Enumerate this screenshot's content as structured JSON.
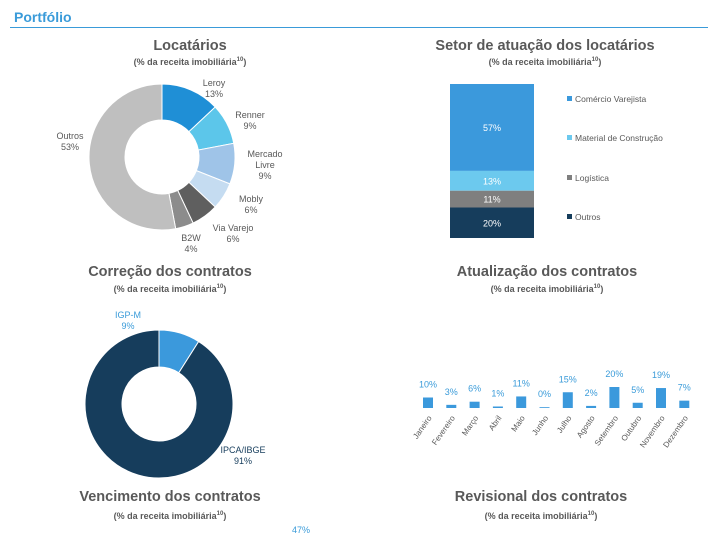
{
  "header": {
    "title": "Portfólio",
    "accent": "#3a9bd9"
  },
  "subtitle_text": "(% da receita imobiliária",
  "subtitle_sup": "10",
  "panels": {
    "locatarios": {
      "title": "Locatários"
    },
    "setor": {
      "title": "Setor de atuação dos locatários"
    },
    "correcao": {
      "title": "Correção dos contratos"
    },
    "atualizacao": {
      "title": "Atualização dos contratos"
    },
    "vencimento": {
      "title": "Vencimento dos contratos",
      "value_label": "47%"
    },
    "revisional": {
      "title": "Revisional dos contratos"
    }
  },
  "chart_data": [
    {
      "id": "locatarios",
      "type": "pie",
      "title": "Locatários",
      "subtitle": "(% da receita imobiliária10)",
      "slices": [
        {
          "label": [
            "Leroy"
          ],
          "value": 13,
          "text": "13%",
          "color": "#1f8fd6"
        },
        {
          "label": [
            "Renner"
          ],
          "value": 9,
          "text": "9%",
          "color": "#5cc6ea"
        },
        {
          "label": [
            "Mercado",
            "Livre"
          ],
          "value": 9,
          "text": "9%",
          "color": "#9fc4e8"
        },
        {
          "label": [
            "Mobly"
          ],
          "value": 6,
          "text": "6%",
          "color": "#c5dcf1"
        },
        {
          "label": [
            "Via Varejo"
          ],
          "value": 6,
          "text": "6%",
          "color": "#5f5f5f"
        },
        {
          "label": [
            "B2W"
          ],
          "value": 4,
          "text": "4%",
          "color": "#8c8c8c"
        },
        {
          "label": [
            "Outros"
          ],
          "value": 53,
          "text": "53%",
          "color": "#bfbfbf"
        }
      ]
    },
    {
      "id": "setor",
      "type": "bar",
      "stacked": true,
      "title": "Setor de atuação dos locatários",
      "subtitle": "(% da receita imobiliária10)",
      "legend_position": "right",
      "segments": [
        {
          "name": "Comércio Varejista",
          "value": 57,
          "text": "57%",
          "color": "#3b99dc"
        },
        {
          "name": "Material de Construção",
          "value": 13,
          "text": "13%",
          "color": "#6cc9ee"
        },
        {
          "name": "Logística",
          "value": 11,
          "text": "11%",
          "color": "#7f7f7f"
        },
        {
          "name": "Outros",
          "value": 20,
          "text": "20%",
          "color": "#163d5c"
        }
      ]
    },
    {
      "id": "correcao",
      "type": "pie",
      "title": "Correção dos contratos",
      "subtitle": "(% da receita imobiliária10)",
      "slices": [
        {
          "label": [
            "IGP-M"
          ],
          "value": 9,
          "text": "9%",
          "color": "#3b99dc"
        },
        {
          "label": [
            "IPCA/IBGE"
          ],
          "value": 91,
          "text": "91%",
          "color": "#163d5c"
        }
      ]
    },
    {
      "id": "atualizacao",
      "type": "bar",
      "title": "Atualização dos contratos",
      "subtitle": "(% da receita imobiliária10)",
      "categories": [
        "Janeiro",
        "Fevereiro",
        "Março",
        "Abril",
        "Maio",
        "Junho",
        "Julho",
        "Agosto",
        "Setembro",
        "Outubro",
        "Novembro",
        "Dezembro"
      ],
      "values": [
        10,
        3,
        6,
        1,
        11,
        0,
        15,
        2,
        20,
        5,
        19,
        7
      ],
      "value_labels": [
        "10%",
        "3%",
        "6%",
        "1%",
        "11%",
        "0%",
        "15%",
        "2%",
        "20%",
        "5%",
        "19%",
        "7%"
      ],
      "color": "#3b99dc"
    }
  ]
}
